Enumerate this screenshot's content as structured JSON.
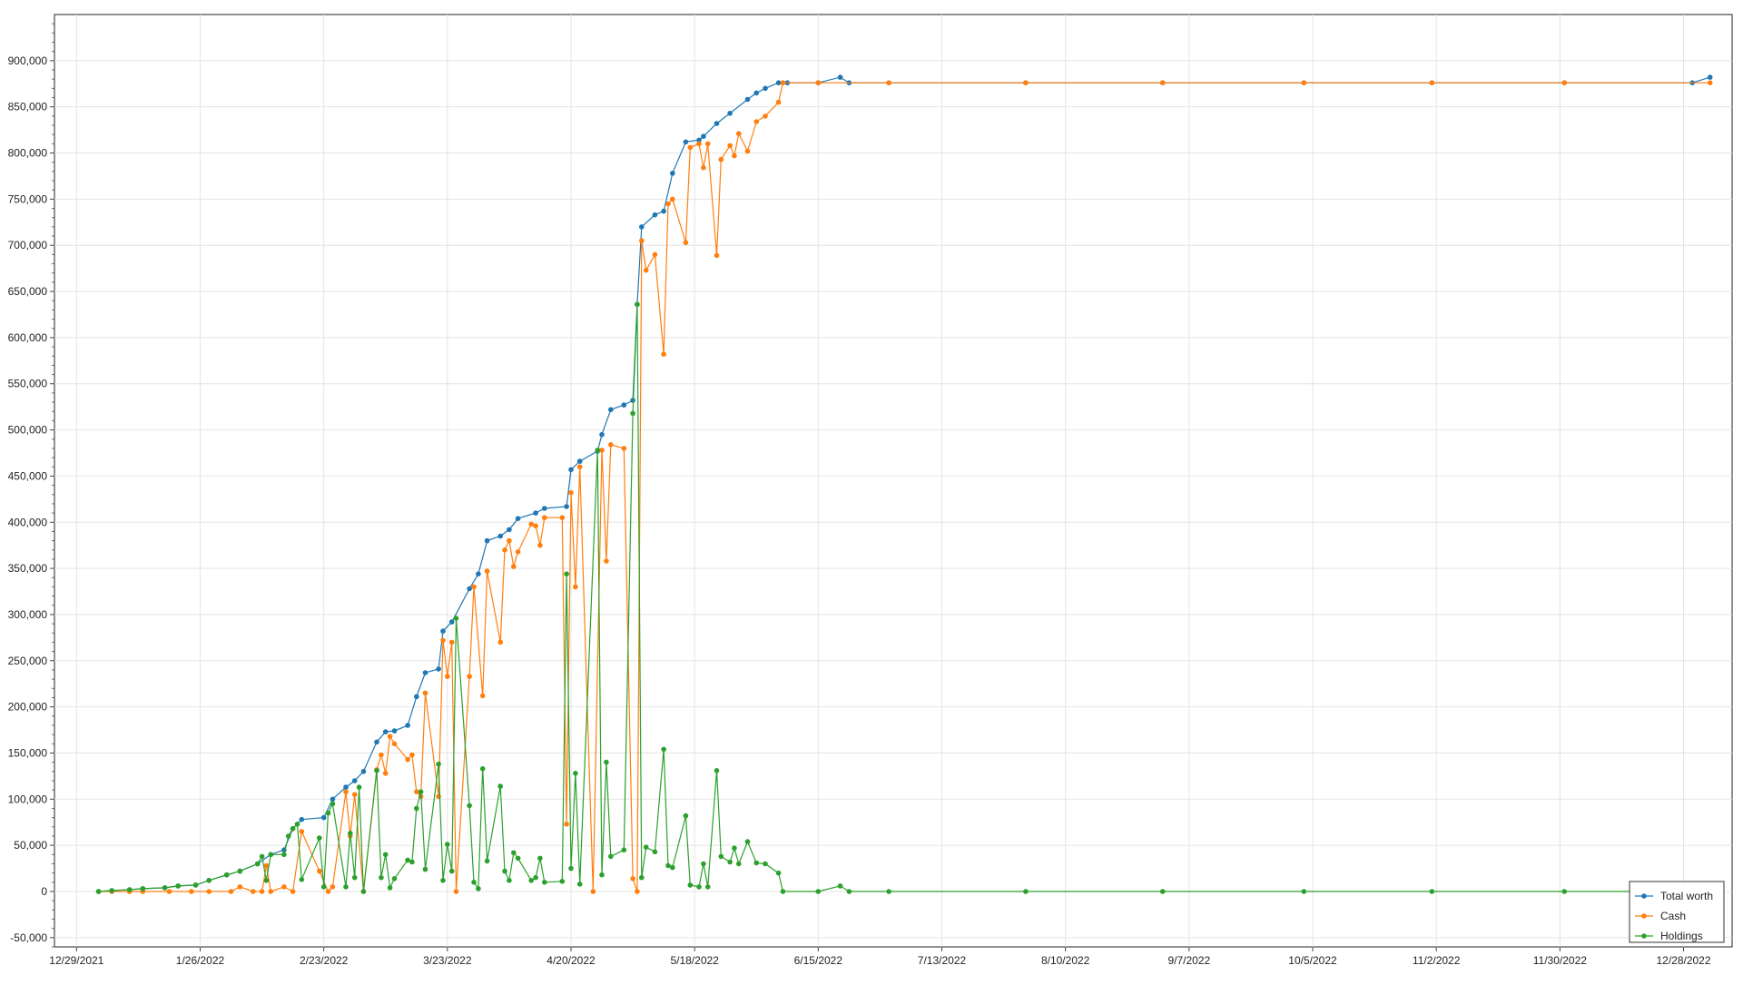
{
  "chart_data": {
    "type": "line",
    "title": "",
    "xlabel": "",
    "ylabel": "",
    "x_ticks": [
      "12/29/2021",
      "1/26/2022",
      "2/23/2022",
      "3/23/2022",
      "4/20/2022",
      "5/18/2022",
      "6/15/2022",
      "7/13/2022",
      "8/10/2022",
      "9/7/2022",
      "10/5/2022",
      "11/2/2022",
      "11/30/2022",
      "12/28/2022"
    ],
    "y_ticks": [
      "-50,000",
      "0",
      "50,000",
      "100,000",
      "150,000",
      "200,000",
      "250,000",
      "300,000",
      "350,000",
      "400,000",
      "450,000",
      "500,000",
      "550,000",
      "600,000",
      "650,000",
      "700,000",
      "750,000",
      "800,000",
      "850,000",
      "900,000"
    ],
    "ylim": [
      -60000,
      950000
    ],
    "xlim": [
      "12/24/2021",
      "1/8/2023"
    ],
    "grid": true,
    "legend_position": "bottom-right",
    "series": [
      {
        "name": "Total worth",
        "color": "#1f77b4",
        "points": [
          [
            "1/3/2022",
            0
          ],
          [
            "1/6/2022",
            1000
          ],
          [
            "1/10/2022",
            2000
          ],
          [
            "1/13/2022",
            3000
          ],
          [
            "1/18/2022",
            4000
          ],
          [
            "1/21/2022",
            6000
          ],
          [
            "1/25/2022",
            7000
          ],
          [
            "1/28/2022",
            12000
          ],
          [
            "2/1/2022",
            18000
          ],
          [
            "2/4/2022",
            22000
          ],
          [
            "2/8/2022",
            30000
          ],
          [
            "2/11/2022",
            40000
          ],
          [
            "2/14/2022",
            45000
          ],
          [
            "2/16/2022",
            68000
          ],
          [
            "2/18/2022",
            78000
          ],
          [
            "2/23/2022",
            80000
          ],
          [
            "2/25/2022",
            100000
          ],
          [
            "2/28/2022",
            113000
          ],
          [
            "3/2/2022",
            120000
          ],
          [
            "3/4/2022",
            130000
          ],
          [
            "3/7/2022",
            162000
          ],
          [
            "3/9/2022",
            173000
          ],
          [
            "3/11/2022",
            174000
          ],
          [
            "3/14/2022",
            180000
          ],
          [
            "3/16/2022",
            211000
          ],
          [
            "3/18/2022",
            237000
          ],
          [
            "3/21/2022",
            241000
          ],
          [
            "3/22/2022",
            282000
          ],
          [
            "3/24/2022",
            292000
          ],
          [
            "3/28/2022",
            328000
          ],
          [
            "3/30/2022",
            344000
          ],
          [
            "4/1/2022",
            380000
          ],
          [
            "4/4/2022",
            385000
          ],
          [
            "4/6/2022",
            392000
          ],
          [
            "4/8/2022",
            404000
          ],
          [
            "4/12/2022",
            410000
          ],
          [
            "4/14/2022",
            415000
          ],
          [
            "4/19/2022",
            417000
          ],
          [
            "4/20/2022",
            457000
          ],
          [
            "4/22/2022",
            466000
          ],
          [
            "4/26/2022",
            477000
          ],
          [
            "4/27/2022",
            495000
          ],
          [
            "4/29/2022",
            522000
          ],
          [
            "5/2/2022",
            527000
          ],
          [
            "5/4/2022",
            532000
          ],
          [
            "5/5/2022",
            636000
          ],
          [
            "5/6/2022",
            720000
          ],
          [
            "5/9/2022",
            733000
          ],
          [
            "5/11/2022",
            737000
          ],
          [
            "5/13/2022",
            778000
          ],
          [
            "5/16/2022",
            812000
          ],
          [
            "5/19/2022",
            814000
          ],
          [
            "5/20/2022",
            818000
          ],
          [
            "5/23/2022",
            832000
          ],
          [
            "5/26/2022",
            843000
          ],
          [
            "5/30/2022",
            858000
          ],
          [
            "6/1/2022",
            865000
          ],
          [
            "6/3/2022",
            870000
          ],
          [
            "6/6/2022",
            876000
          ],
          [
            "6/8/2022",
            876000
          ],
          [
            "6/15/2022",
            876000
          ],
          [
            "6/20/2022",
            882000
          ],
          [
            "6/22/2022",
            876000
          ],
          [
            "7/1/2022",
            876000
          ],
          [
            "8/1/2022",
            876000
          ],
          [
            "9/1/2022",
            876000
          ],
          [
            "10/3/2022",
            876000
          ],
          [
            "11/1/2022",
            876000
          ],
          [
            "12/1/2022",
            876000
          ],
          [
            "12/30/2022",
            876000
          ],
          [
            "1/3/2023",
            882000
          ]
        ]
      },
      {
        "name": "Cash",
        "color": "#ff7f0e",
        "points": [
          [
            "1/3/2022",
            0
          ],
          [
            "1/6/2022",
            0
          ],
          [
            "1/10/2022",
            0
          ],
          [
            "1/13/2022",
            0
          ],
          [
            "1/19/2022",
            0
          ],
          [
            "1/24/2022",
            0
          ],
          [
            "1/28/2022",
            0
          ],
          [
            "2/2/2022",
            0
          ],
          [
            "2/4/2022",
            5000
          ],
          [
            "2/7/2022",
            0
          ],
          [
            "2/9/2022",
            0
          ],
          [
            "2/10/2022",
            28000
          ],
          [
            "2/11/2022",
            0
          ],
          [
            "2/14/2022",
            5000
          ],
          [
            "2/16/2022",
            0
          ],
          [
            "2/18/2022",
            65000
          ],
          [
            "2/22/2022",
            22000
          ],
          [
            "2/24/2022",
            0
          ],
          [
            "2/25/2022",
            5000
          ],
          [
            "2/28/2022",
            108000
          ],
          [
            "3/1/2022",
            60000
          ],
          [
            "3/2/2022",
            105000
          ],
          [
            "3/4/2022",
            0
          ],
          [
            "3/7/2022",
            132000
          ],
          [
            "3/8/2022",
            148000
          ],
          [
            "3/9/2022",
            128000
          ],
          [
            "3/10/2022",
            168000
          ],
          [
            "3/11/2022",
            160000
          ],
          [
            "3/14/2022",
            143000
          ],
          [
            "3/15/2022",
            148000
          ],
          [
            "3/16/2022",
            108000
          ],
          [
            "3/17/2022",
            103000
          ],
          [
            "3/18/2022",
            215000
          ],
          [
            "3/21/2022",
            103000
          ],
          [
            "3/22/2022",
            272000
          ],
          [
            "3/23/2022",
            233000
          ],
          [
            "3/24/2022",
            270000
          ],
          [
            "3/25/2022",
            0
          ],
          [
            "3/28/2022",
            233000
          ],
          [
            "3/29/2022",
            330000
          ],
          [
            "3/31/2022",
            212000
          ],
          [
            "4/1/2022",
            347000
          ],
          [
            "4/4/2022",
            270000
          ],
          [
            "4/5/2022",
            370000
          ],
          [
            "4/6/2022",
            380000
          ],
          [
            "4/7/2022",
            352000
          ],
          [
            "4/8/2022",
            368000
          ],
          [
            "4/11/2022",
            398000
          ],
          [
            "4/12/2022",
            396000
          ],
          [
            "4/13/2022",
            375000
          ],
          [
            "4/14/2022",
            405000
          ],
          [
            "4/18/2022",
            405000
          ],
          [
            "4/19/2022",
            73000
          ],
          [
            "4/20/2022",
            432000
          ],
          [
            "4/21/2022",
            330000
          ],
          [
            "4/22/2022",
            460000
          ],
          [
            "4/25/2022",
            0
          ],
          [
            "4/27/2022",
            478000
          ],
          [
            "4/28/2022",
            358000
          ],
          [
            "4/29/2022",
            484000
          ],
          [
            "5/2/2022",
            480000
          ],
          [
            "5/4/2022",
            14000
          ],
          [
            "5/5/2022",
            0
          ],
          [
            "5/6/2022",
            705000
          ],
          [
            "5/7/2022",
            673000
          ],
          [
            "5/9/2022",
            690000
          ],
          [
            "5/11/2022",
            582000
          ],
          [
            "5/12/2022",
            745000
          ],
          [
            "5/13/2022",
            750000
          ],
          [
            "5/16/2022",
            703000
          ],
          [
            "5/17/2022",
            806000
          ],
          [
            "5/19/2022",
            810000
          ],
          [
            "5/20/2022",
            784000
          ],
          [
            "5/21/2022",
            810000
          ],
          [
            "5/23/2022",
            689000
          ],
          [
            "5/24/2022",
            793000
          ],
          [
            "5/26/2022",
            808000
          ],
          [
            "5/27/2022",
            797000
          ],
          [
            "5/28/2022",
            821000
          ],
          [
            "5/30/2022",
            802000
          ],
          [
            "6/1/2022",
            834000
          ],
          [
            "6/3/2022",
            840000
          ],
          [
            "6/6/2022",
            855000
          ],
          [
            "6/7/2022",
            876000
          ],
          [
            "6/15/2022",
            876000
          ],
          [
            "7/1/2022",
            876000
          ],
          [
            "8/1/2022",
            876000
          ],
          [
            "9/1/2022",
            876000
          ],
          [
            "10/3/2022",
            876000
          ],
          [
            "11/1/2022",
            876000
          ],
          [
            "12/1/2022",
            876000
          ],
          [
            "1/3/2023",
            876000
          ]
        ]
      },
      {
        "name": "Holdings",
        "color": "#2ca02c",
        "points": [
          [
            "1/3/2022",
            0
          ],
          [
            "1/6/2022",
            1000
          ],
          [
            "1/10/2022",
            2000
          ],
          [
            "1/13/2022",
            3000
          ],
          [
            "1/18/2022",
            4000
          ],
          [
            "1/21/2022",
            6000
          ],
          [
            "1/25/2022",
            7000
          ],
          [
            "1/28/2022",
            12000
          ],
          [
            "2/1/2022",
            18000
          ],
          [
            "2/4/2022",
            22000
          ],
          [
            "2/8/2022",
            30000
          ],
          [
            "2/9/2022",
            38000
          ],
          [
            "2/10/2022",
            12000
          ],
          [
            "2/11/2022",
            40000
          ],
          [
            "2/14/2022",
            40000
          ],
          [
            "2/15/2022",
            60000
          ],
          [
            "2/16/2022",
            68000
          ],
          [
            "2/17/2022",
            73000
          ],
          [
            "2/18/2022",
            13000
          ],
          [
            "2/22/2022",
            58000
          ],
          [
            "2/23/2022",
            5000
          ],
          [
            "2/24/2022",
            85000
          ],
          [
            "2/25/2022",
            95000
          ],
          [
            "2/28/2022",
            5000
          ],
          [
            "3/1/2022",
            63000
          ],
          [
            "3/2/2022",
            15000
          ],
          [
            "3/3/2022",
            113000
          ],
          [
            "3/4/2022",
            0
          ],
          [
            "3/7/2022",
            131000
          ],
          [
            "3/8/2022",
            15000
          ],
          [
            "3/9/2022",
            40000
          ],
          [
            "3/10/2022",
            4000
          ],
          [
            "3/11/2022",
            14000
          ],
          [
            "3/14/2022",
            34000
          ],
          [
            "3/15/2022",
            32000
          ],
          [
            "3/16/2022",
            90000
          ],
          [
            "3/17/2022",
            108000
          ],
          [
            "3/18/2022",
            24000
          ],
          [
            "3/21/2022",
            138000
          ],
          [
            "3/22/2022",
            12000
          ],
          [
            "3/23/2022",
            51000
          ],
          [
            "3/24/2022",
            22000
          ],
          [
            "3/25/2022",
            296000
          ],
          [
            "3/28/2022",
            93000
          ],
          [
            "3/29/2022",
            10000
          ],
          [
            "3/30/2022",
            3000
          ],
          [
            "3/31/2022",
            133000
          ],
          [
            "4/1/2022",
            33000
          ],
          [
            "4/4/2022",
            114000
          ],
          [
            "4/5/2022",
            22000
          ],
          [
            "4/6/2022",
            12000
          ],
          [
            "4/7/2022",
            42000
          ],
          [
            "4/8/2022",
            36000
          ],
          [
            "4/11/2022",
            12000
          ],
          [
            "4/12/2022",
            15000
          ],
          [
            "4/13/2022",
            36000
          ],
          [
            "4/14/2022",
            10000
          ],
          [
            "4/18/2022",
            11000
          ],
          [
            "4/19/2022",
            344000
          ],
          [
            "4/20/2022",
            25000
          ],
          [
            "4/21/2022",
            128000
          ],
          [
            "4/22/2022",
            8000
          ],
          [
            "4/26/2022",
            478000
          ],
          [
            "4/27/2022",
            18000
          ],
          [
            "4/28/2022",
            140000
          ],
          [
            "4/29/2022",
            38000
          ],
          [
            "5/2/2022",
            45000
          ],
          [
            "5/4/2022",
            518000
          ],
          [
            "5/5/2022",
            636000
          ],
          [
            "5/6/2022",
            15000
          ],
          [
            "5/7/2022",
            48000
          ],
          [
            "5/9/2022",
            43000
          ],
          [
            "5/11/2022",
            154000
          ],
          [
            "5/12/2022",
            28000
          ],
          [
            "5/13/2022",
            26000
          ],
          [
            "5/16/2022",
            82000
          ],
          [
            "5/17/2022",
            7000
          ],
          [
            "5/19/2022",
            5000
          ],
          [
            "5/20/2022",
            30000
          ],
          [
            "5/21/2022",
            5000
          ],
          [
            "5/23/2022",
            131000
          ],
          [
            "5/24/2022",
            38000
          ],
          [
            "5/26/2022",
            32000
          ],
          [
            "5/27/2022",
            47000
          ],
          [
            "5/28/2022",
            30000
          ],
          [
            "5/30/2022",
            54000
          ],
          [
            "6/1/2022",
            31000
          ],
          [
            "6/3/2022",
            30000
          ],
          [
            "6/6/2022",
            20000
          ],
          [
            "6/7/2022",
            0
          ],
          [
            "6/15/2022",
            0
          ],
          [
            "6/20/2022",
            6000
          ],
          [
            "6/22/2022",
            0
          ],
          [
            "7/1/2022",
            0
          ],
          [
            "8/1/2022",
            0
          ],
          [
            "9/1/2022",
            0
          ],
          [
            "10/3/2022",
            0
          ],
          [
            "11/1/2022",
            0
          ],
          [
            "12/1/2022",
            0
          ],
          [
            "1/3/2023",
            0
          ]
        ]
      }
    ]
  }
}
